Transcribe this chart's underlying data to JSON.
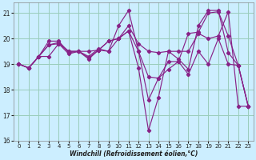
{
  "bg_color": "#cceeff",
  "line_color": "#882288",
  "grid_color": "#99ccbb",
  "xlabel": "Windchill (Refroidissement éolien,°C)",
  "xmin": -0.5,
  "xmax": 23.5,
  "ymin": 16,
  "ymax": 21.4,
  "yticks": [
    16,
    17,
    18,
    19,
    20,
    21
  ],
  "xticks": [
    0,
    1,
    2,
    3,
    4,
    5,
    6,
    7,
    8,
    9,
    10,
    11,
    12,
    13,
    14,
    15,
    16,
    17,
    18,
    19,
    20,
    21,
    22,
    23
  ],
  "curves": [
    {
      "x": [
        0,
        1,
        2,
        3,
        4,
        5,
        6,
        7,
        8,
        9,
        10,
        11,
        12,
        13,
        14,
        15,
        16,
        17,
        18,
        19,
        20,
        21,
        22,
        23
      ],
      "y": [
        19.0,
        18.85,
        19.3,
        19.75,
        19.85,
        19.5,
        19.5,
        19.25,
        19.55,
        19.5,
        20.5,
        21.1,
        19.5,
        17.6,
        18.45,
        18.8,
        19.1,
        20.2,
        20.25,
        21.0,
        21.05,
        20.1,
        18.95,
        17.35
      ]
    },
    {
      "x": [
        0,
        1,
        2,
        3,
        4,
        5,
        6,
        7,
        8,
        9,
        10,
        11,
        12,
        13,
        14,
        15,
        16,
        17,
        18,
        19,
        20,
        21,
        22,
        23
      ],
      "y": [
        19.0,
        18.85,
        19.3,
        19.9,
        19.9,
        19.45,
        19.5,
        19.3,
        19.6,
        19.5,
        20.0,
        20.3,
        18.85,
        16.4,
        17.7,
        19.5,
        19.2,
        18.8,
        20.5,
        21.1,
        21.1,
        19.45,
        18.95,
        17.35
      ]
    },
    {
      "x": [
        0,
        1,
        2,
        3,
        4,
        5,
        6,
        7,
        8,
        9,
        10,
        11,
        12,
        13,
        14,
        15,
        16,
        17,
        18,
        19,
        20,
        21,
        22,
        23
      ],
      "y": [
        19.0,
        18.85,
        19.3,
        19.75,
        19.8,
        19.5,
        19.5,
        19.2,
        19.55,
        19.9,
        20.0,
        20.5,
        19.8,
        19.5,
        19.45,
        19.5,
        19.5,
        19.5,
        20.2,
        20.0,
        20.1,
        21.05,
        17.35,
        17.35
      ]
    },
    {
      "x": [
        0,
        1,
        2,
        3,
        4,
        5,
        6,
        7,
        8,
        9,
        10,
        11,
        12,
        13,
        14,
        15,
        16,
        17,
        18,
        19,
        20,
        21,
        22,
        23
      ],
      "y": [
        19.0,
        18.85,
        19.3,
        19.3,
        19.8,
        19.4,
        19.5,
        19.5,
        19.55,
        19.9,
        20.0,
        20.3,
        19.5,
        18.5,
        18.45,
        19.1,
        19.1,
        18.6,
        19.5,
        19.0,
        20.0,
        19.0,
        18.95,
        17.35
      ]
    }
  ]
}
